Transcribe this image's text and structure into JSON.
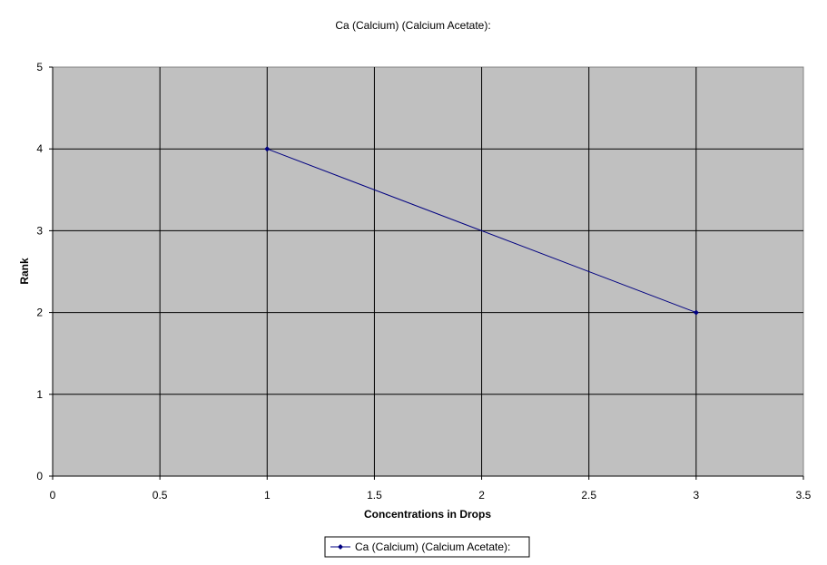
{
  "chart_data": {
    "type": "line",
    "title": "Ca (Calcium) (Calcium Acetate):",
    "xlabel": "Concentrations in Drops",
    "ylabel": "Rank",
    "xlim": [
      0,
      3.5
    ],
    "ylim": [
      0,
      5
    ],
    "x_ticks": [
      "0",
      "0.5",
      "1",
      "1.5",
      "2",
      "2.5",
      "3",
      "3.5"
    ],
    "y_ticks": [
      "0",
      "1",
      "2",
      "3",
      "4",
      "5"
    ],
    "grid": true,
    "legend_position": "bottom",
    "series": [
      {
        "name": "Ca (Calcium) (Calcium Acetate):",
        "x": [
          1,
          3
        ],
        "y": [
          4,
          2
        ],
        "color": "#000080",
        "marker": "diamond"
      }
    ],
    "plot_background": "#c0c0c0"
  }
}
